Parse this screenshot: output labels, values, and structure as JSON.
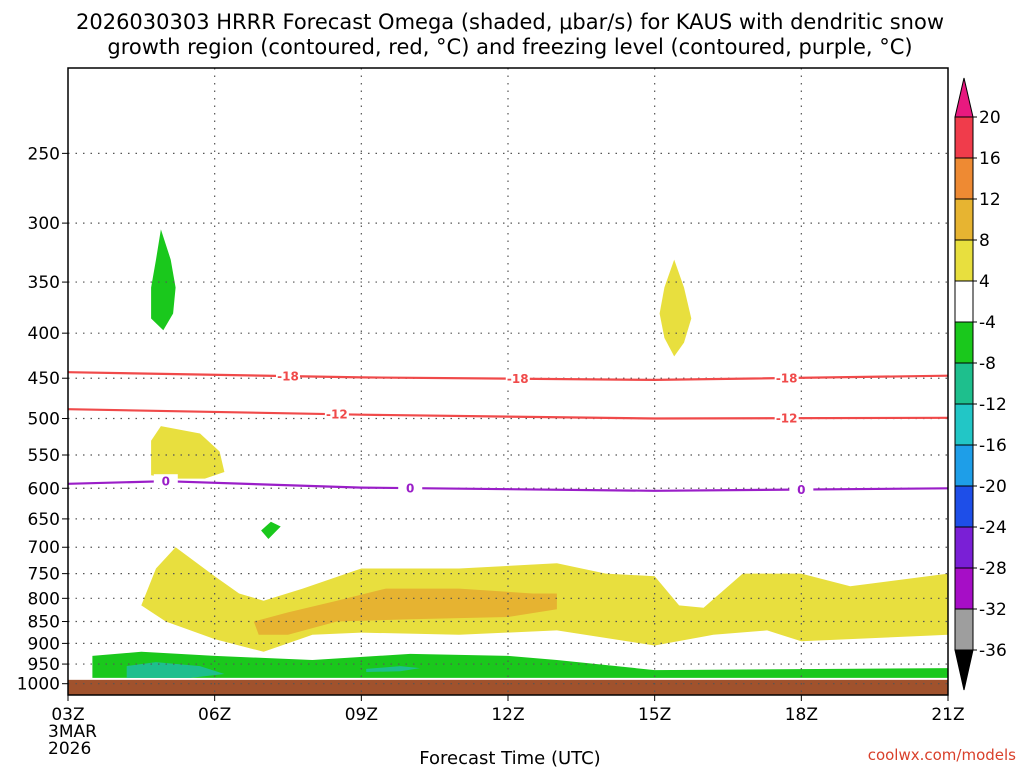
{
  "chart_data": {
    "type": "contour",
    "title_lines": [
      "2026030303 HRRR Forecast Omega (shaded, μbar/s) for KAUS with dendritic snow",
      "growth region (contoured, red, °C) and freezing level (contoured, purple, °C)"
    ],
    "xlabel": "Forecast Time (UTC)",
    "credit": "coolwx.com/models",
    "x_ticks": [
      {
        "hour": 0,
        "label": "03Z",
        "sub": [
          "3MAR",
          "2026"
        ]
      },
      {
        "hour": 3,
        "label": "06Z",
        "sub": []
      },
      {
        "hour": 6,
        "label": "09Z",
        "sub": []
      },
      {
        "hour": 9,
        "label": "12Z",
        "sub": []
      },
      {
        "hour": 12,
        "label": "15Z",
        "sub": []
      },
      {
        "hour": 15,
        "label": "18Z",
        "sub": []
      },
      {
        "hour": 18,
        "label": "21Z",
        "sub": []
      }
    ],
    "xlim_hours": [
      0,
      18
    ],
    "y_ticks": [
      "250",
      "300",
      "350",
      "400",
      "450",
      "500",
      "550",
      "600",
      "650",
      "700",
      "750",
      "800",
      "850",
      "900",
      "950",
      "1000"
    ],
    "ylim_hpa": [
      200,
      1030
    ],
    "y_scale": "log-pressure",
    "ground_level_hpa": 990,
    "colorbar": {
      "levels": [
        "20",
        "16",
        "12",
        "8",
        "4",
        "-4",
        "-8",
        "-12",
        "-16",
        "-20",
        "-24",
        "-28",
        "-32",
        "-36"
      ],
      "colors": [
        "#f03c4b",
        "#ee8a33",
        "#e7b431",
        "#e8df3e",
        "#ffffff",
        "#1ac81c",
        "#1ebf8d",
        "#22c6c6",
        "#1e9ee8",
        "#1e4ee8",
        "#7a1fd6",
        "#a60ec6",
        "#9e9e9e"
      ],
      "top_arrow_color": "#e8197f",
      "bottom_arrow_color": "#000000"
    },
    "contours": [
      {
        "kind": "dendritic",
        "value": -18,
        "color": "#f04a4a",
        "label": "-18",
        "points": [
          [
            0,
            443
          ],
          [
            6,
            449
          ],
          [
            12,
            452
          ],
          [
            18,
            447
          ]
        ],
        "label_hours": [
          4.5,
          9.2,
          14.7
        ]
      },
      {
        "kind": "dendritic",
        "value": -12,
        "color": "#f04a4a",
        "label": "-12",
        "points": [
          [
            0,
            488
          ],
          [
            6,
            495
          ],
          [
            12,
            500
          ],
          [
            18,
            499
          ]
        ],
        "label_hours": [
          5.5,
          14.7
        ]
      },
      {
        "kind": "freezing_level",
        "value": 0,
        "color": "#9a1ec8",
        "label": "0",
        "points": [
          [
            0,
            593
          ],
          [
            2,
            589
          ],
          [
            6,
            599
          ],
          [
            12,
            604
          ],
          [
            18,
            600
          ]
        ],
        "label_hours": [
          2.0,
          7.0,
          15.0
        ]
      }
    ],
    "shaded_regions": [
      {
        "value_range": "-8 to -4",
        "color": "#1ac81c",
        "points": [
          [
            1.9,
            305
          ],
          [
            2.1,
            330
          ],
          [
            2.2,
            355
          ],
          [
            2.15,
            380
          ],
          [
            1.95,
            397
          ],
          [
            1.7,
            385
          ],
          [
            1.7,
            355
          ],
          [
            1.8,
            330
          ]
        ]
      },
      {
        "value_range": "4 to 8",
        "color": "#e8df3e",
        "points": [
          [
            12.4,
            330
          ],
          [
            12.6,
            355
          ],
          [
            12.75,
            385
          ],
          [
            12.6,
            410
          ],
          [
            12.4,
            425
          ],
          [
            12.2,
            405
          ],
          [
            12.1,
            380
          ],
          [
            12.2,
            355
          ]
        ]
      },
      {
        "value_range": "4 to 8",
        "color": "#e8df3e",
        "points": [
          [
            1.7,
            530
          ],
          [
            1.9,
            510
          ],
          [
            2.7,
            520
          ],
          [
            3.1,
            545
          ],
          [
            3.2,
            575
          ],
          [
            2.8,
            585
          ],
          [
            2.1,
            585
          ],
          [
            1.7,
            580
          ]
        ]
      },
      {
        "value_range": "-8 to -4",
        "color": "#1ac81c",
        "points": [
          [
            3.95,
            670
          ],
          [
            4.15,
            655
          ],
          [
            4.35,
            663
          ],
          [
            4.1,
            685
          ]
        ]
      },
      {
        "value_range": "4 to 8",
        "color": "#e8df3e",
        "points": [
          [
            1.5,
            815
          ],
          [
            1.8,
            740
          ],
          [
            2.2,
            700
          ],
          [
            3.0,
            755
          ],
          [
            3.5,
            790
          ],
          [
            4.0,
            805
          ],
          [
            4.8,
            780
          ],
          [
            6.0,
            740
          ],
          [
            8.0,
            740
          ],
          [
            10.0,
            730
          ],
          [
            11.0,
            750
          ],
          [
            12.0,
            755
          ],
          [
            12.5,
            815
          ],
          [
            13.0,
            820
          ],
          [
            13.8,
            750
          ],
          [
            15.0,
            750
          ],
          [
            16.0,
            775
          ],
          [
            18.0,
            750
          ],
          [
            18.0,
            880
          ],
          [
            15.0,
            895
          ],
          [
            14.3,
            870
          ],
          [
            13.2,
            880
          ],
          [
            12.0,
            905
          ],
          [
            10.0,
            870
          ],
          [
            8.0,
            880
          ],
          [
            6.0,
            875
          ],
          [
            5.0,
            880
          ],
          [
            4.0,
            920
          ],
          [
            3.0,
            890
          ],
          [
            2.0,
            850
          ]
        ]
      },
      {
        "value_range": "8 to 12",
        "color": "#e6b331",
        "points": [
          [
            3.8,
            850
          ],
          [
            4.5,
            830
          ],
          [
            5.5,
            805
          ],
          [
            6.5,
            780
          ],
          [
            8.0,
            780
          ],
          [
            9.5,
            790
          ],
          [
            10.0,
            790
          ],
          [
            10.0,
            823
          ],
          [
            9.0,
            840
          ],
          [
            7.0,
            845
          ],
          [
            5.5,
            850
          ],
          [
            4.5,
            880
          ],
          [
            3.9,
            880
          ]
        ]
      },
      {
        "value_range": "-8 to -4",
        "color": "#1ac81c",
        "points": [
          [
            0.5,
            930
          ],
          [
            1.5,
            920
          ],
          [
            3.0,
            930
          ],
          [
            5.0,
            940
          ],
          [
            7.0,
            925
          ],
          [
            9.0,
            930
          ],
          [
            10.0,
            940
          ],
          [
            12.0,
            965
          ],
          [
            18.0,
            960
          ],
          [
            18.0,
            985
          ],
          [
            0.5,
            985
          ]
        ]
      },
      {
        "value_range": "-12 to -8",
        "color": "#1ebf8d",
        "points": [
          [
            1.2,
            955
          ],
          [
            1.8,
            945
          ],
          [
            2.7,
            955
          ],
          [
            3.2,
            975
          ],
          [
            2.5,
            985
          ],
          [
            1.2,
            985
          ]
        ]
      },
      {
        "value_range": "-12 to -8",
        "color": "#1ebf8d",
        "points": [
          [
            6.1,
            962
          ],
          [
            6.8,
            955
          ],
          [
            7.2,
            960
          ],
          [
            6.8,
            968
          ],
          [
            6.1,
            970
          ]
        ]
      }
    ]
  }
}
